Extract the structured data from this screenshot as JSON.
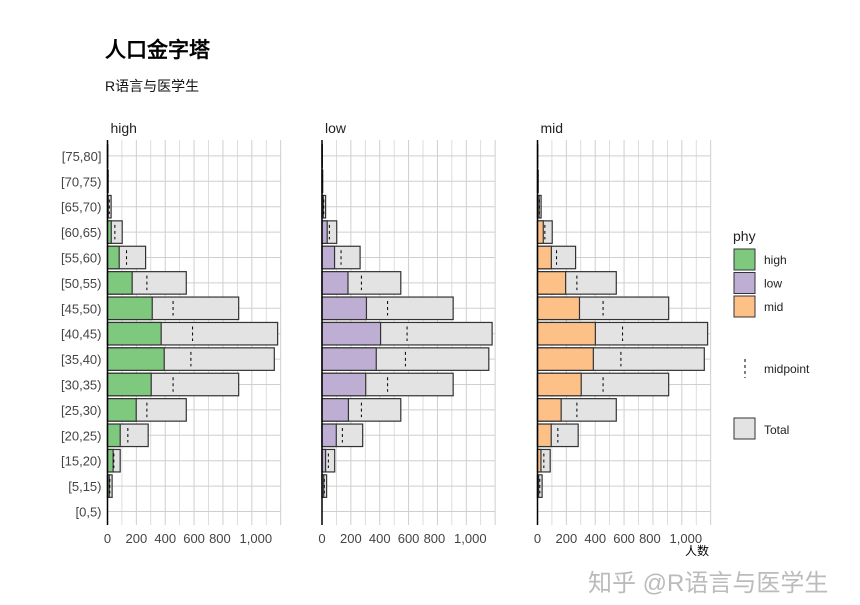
{
  "chart_data": {
    "type": "bar",
    "orientation": "horizontal",
    "title": "人口金字塔",
    "subtitle": "R语言与医学生",
    "xlabel": "人数",
    "ylabel": "",
    "xlim": [
      0,
      1200
    ],
    "x_ticks": [
      "0",
      "200",
      "400",
      "600",
      "800",
      "1,000"
    ],
    "x_tick_values": [
      0,
      200,
      400,
      600,
      800,
      1000
    ],
    "grid": true,
    "categories": [
      "[0,5)",
      "[5,15)",
      "[15,20)",
      "[20,25)",
      "[25,30)",
      "[30,35)",
      "[35,40)",
      "[40,45)",
      "[45,50)",
      "[50,55)",
      "[55,60)",
      "[60,65)",
      "[65,70)",
      "[70,75)",
      "[75,80]"
    ],
    "panels": [
      "high",
      "low",
      "mid"
    ],
    "series": [
      {
        "name": "high",
        "color": "#7fc97f",
        "values": [
          0,
          12,
          39,
          88,
          199,
          303,
          393,
          372,
          310,
          171,
          81,
          26,
          5,
          2,
          1
        ]
      },
      {
        "name": "low",
        "color": "#beaed4",
        "values": [
          0,
          12,
          25,
          99,
          183,
          303,
          376,
          406,
          308,
          180,
          87,
          36,
          9,
          2,
          1
        ]
      },
      {
        "name": "mid",
        "color": "#fdc086",
        "values": [
          0,
          8,
          24,
          95,
          164,
          303,
          387,
          401,
          291,
          195,
          96,
          40,
          11,
          1,
          0
        ]
      }
    ],
    "total": {
      "name": "Total",
      "color": "#e3e3e3"
    },
    "midpoint": {
      "name": "midpoint"
    },
    "legend": {
      "title": "phy",
      "position": "right"
    }
  },
  "watermark": "知乎 @R语言与医学生"
}
